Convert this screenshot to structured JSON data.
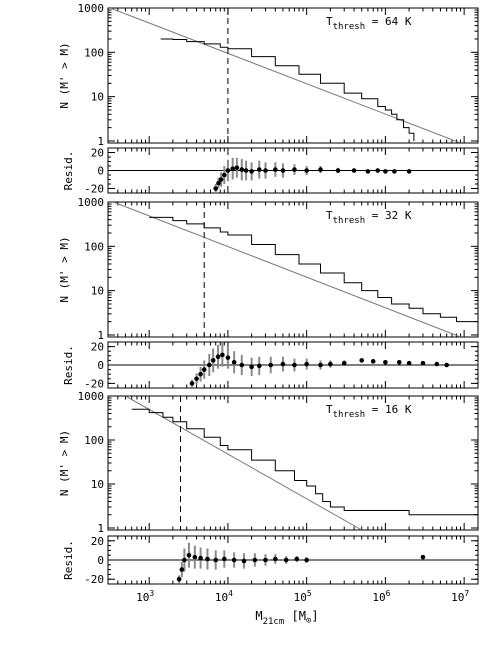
{
  "chart_data": [
    {
      "type": "line",
      "ylabel": "N (M' > M)",
      "annotation": {
        "prefix": "T",
        "sub": "thresh",
        "suffix": " = 64 K"
      },
      "xscale": "log",
      "yscale": "log",
      "xlim": [
        300,
        15000000
      ],
      "ylim": [
        0.9,
        1000
      ],
      "yticks": [
        {
          "v": 1,
          "label": "1"
        },
        {
          "v": 10,
          "label": "10"
        },
        {
          "v": 100,
          "label": "100"
        },
        {
          "v": 1000,
          "label": "1000"
        }
      ],
      "threshold_mass": 10000,
      "powerlaw_fit": {
        "x": [
          320,
          9000000
        ],
        "y": [
          1000,
          0.9
        ]
      },
      "cumulative": [
        [
          1400,
          200
        ],
        [
          2000,
          195
        ],
        [
          3000,
          175
        ],
        [
          5000,
          155
        ],
        [
          8000,
          130
        ],
        [
          10000,
          120
        ],
        [
          20000,
          80
        ],
        [
          40000,
          50
        ],
        [
          80000,
          32
        ],
        [
          150000,
          20
        ],
        [
          300000,
          12
        ],
        [
          500000,
          9
        ],
        [
          800000,
          6
        ],
        [
          1000000,
          5
        ],
        [
          1200000,
          4
        ],
        [
          1400000,
          3
        ],
        [
          1700000,
          2
        ],
        [
          2000000,
          1.5
        ],
        [
          2300000,
          1
        ]
      ]
    },
    {
      "type": "scatter",
      "ylabel": "Resid.",
      "xscale": "log",
      "xlim": [
        300,
        15000000
      ],
      "ylim": [
        -25,
        25
      ],
      "yticks": [
        {
          "v": -20,
          "label": "-20"
        },
        {
          "v": 0,
          "label": "0"
        },
        {
          "v": 20,
          "label": "20"
        }
      ],
      "points": [
        [
          7000,
          -20,
          5
        ],
        [
          7600,
          -14,
          6
        ],
        [
          8200,
          -10,
          8
        ],
        [
          9000,
          -5,
          10
        ],
        [
          10000,
          0,
          12
        ],
        [
          11500,
          2,
          12
        ],
        [
          13000,
          3,
          11
        ],
        [
          15000,
          1,
          12
        ],
        [
          17000,
          0,
          11
        ],
        [
          20000,
          -1,
          10
        ],
        [
          25000,
          1,
          10
        ],
        [
          30000,
          0,
          9
        ],
        [
          40000,
          1,
          8
        ],
        [
          50000,
          0,
          8
        ],
        [
          70000,
          1,
          6
        ],
        [
          100000,
          0,
          5
        ],
        [
          150000,
          1,
          4
        ],
        [
          250000,
          0,
          3
        ],
        [
          400000,
          0,
          2
        ],
        [
          600000,
          -1,
          2
        ],
        [
          800000,
          0,
          2
        ],
        [
          1000000,
          -1,
          2
        ],
        [
          1300000,
          -1,
          2
        ],
        [
          2000000,
          -1,
          2
        ]
      ]
    },
    {
      "type": "line",
      "ylabel": "N (M' > M)",
      "annotation": {
        "prefix": "T",
        "sub": "thresh",
        "suffix": " = 32 K"
      },
      "xscale": "log",
      "yscale": "log",
      "xlim": [
        300,
        15000000
      ],
      "ylim": [
        0.9,
        1000
      ],
      "yticks": [
        {
          "v": 1,
          "label": "1"
        },
        {
          "v": 10,
          "label": "10"
        },
        {
          "v": 100,
          "label": "100"
        },
        {
          "v": 1000,
          "label": "1000"
        }
      ],
      "threshold_mass": 5000,
      "powerlaw_fit": {
        "x": [
          350,
          9000000
        ],
        "y": [
          1000,
          0.9
        ]
      },
      "cumulative": [
        [
          1000,
          450
        ],
        [
          2000,
          380
        ],
        [
          3000,
          320
        ],
        [
          5000,
          260
        ],
        [
          8000,
          210
        ],
        [
          10000,
          180
        ],
        [
          20000,
          110
        ],
        [
          40000,
          65
        ],
        [
          80000,
          40
        ],
        [
          150000,
          25
        ],
        [
          300000,
          15
        ],
        [
          500000,
          10
        ],
        [
          800000,
          7
        ],
        [
          1200000,
          5
        ],
        [
          2000000,
          4
        ],
        [
          3000000,
          3
        ],
        [
          5000000,
          2.5
        ],
        [
          8000000,
          2
        ],
        [
          15000000,
          2
        ]
      ]
    },
    {
      "type": "scatter",
      "ylabel": "Resid.",
      "xscale": "log",
      "xlim": [
        300,
        15000000
      ],
      "ylim": [
        -25,
        25
      ],
      "yticks": [
        {
          "v": -20,
          "label": "-20"
        },
        {
          "v": 0,
          "label": "0"
        },
        {
          "v": 20,
          "label": "20"
        }
      ],
      "points": [
        [
          3500,
          -20,
          4
        ],
        [
          4000,
          -15,
          6
        ],
        [
          4500,
          -10,
          8
        ],
        [
          5000,
          -5,
          10
        ],
        [
          5800,
          0,
          12
        ],
        [
          6500,
          5,
          13
        ],
        [
          7500,
          9,
          13
        ],
        [
          8500,
          11,
          13
        ],
        [
          10000,
          8,
          12
        ],
        [
          12000,
          3,
          12
        ],
        [
          15000,
          0,
          11
        ],
        [
          20000,
          -2,
          10
        ],
        [
          25000,
          -1,
          10
        ],
        [
          35000,
          0,
          9
        ],
        [
          50000,
          1,
          8
        ],
        [
          70000,
          0,
          7
        ],
        [
          100000,
          1,
          6
        ],
        [
          150000,
          0,
          5
        ],
        [
          200000,
          1,
          4
        ],
        [
          300000,
          2,
          3
        ],
        [
          500000,
          5,
          2
        ],
        [
          700000,
          4,
          2
        ],
        [
          1000000,
          3,
          2
        ],
        [
          1500000,
          3,
          2
        ],
        [
          2000000,
          2,
          2
        ],
        [
          3000000,
          2,
          2
        ],
        [
          4500000,
          1,
          2
        ],
        [
          6000000,
          0,
          2
        ]
      ]
    },
    {
      "type": "line",
      "ylabel": "N (M' > M)",
      "annotation": {
        "prefix": "T",
        "sub": "thresh",
        "suffix": " = 16 K"
      },
      "xscale": "log",
      "yscale": "log",
      "xlim": [
        300,
        15000000
      ],
      "ylim": [
        0.9,
        1000
      ],
      "yticks": [
        {
          "v": 1,
          "label": "1"
        },
        {
          "v": 10,
          "label": "10"
        },
        {
          "v": 100,
          "label": "100"
        },
        {
          "v": 1000,
          "label": "1000"
        }
      ],
      "threshold_mass": 2500,
      "powerlaw_fit": {
        "x": [
          500,
          500000
        ],
        "y": [
          1000,
          0.9
        ]
      },
      "cumulative": [
        [
          600,
          500
        ],
        [
          1000,
          420
        ],
        [
          1500,
          330
        ],
        [
          2000,
          260
        ],
        [
          3000,
          180
        ],
        [
          5000,
          115
        ],
        [
          8000,
          75
        ],
        [
          10000,
          60
        ],
        [
          20000,
          35
        ],
        [
          40000,
          20
        ],
        [
          70000,
          12
        ],
        [
          100000,
          9
        ],
        [
          130000,
          6
        ],
        [
          160000,
          4
        ],
        [
          200000,
          3
        ],
        [
          300000,
          2.5
        ],
        [
          500000,
          2.5
        ],
        [
          1000000,
          2.5
        ],
        [
          1500000,
          2.5
        ],
        [
          2000000,
          2
        ],
        [
          15000000,
          2
        ]
      ]
    },
    {
      "type": "scatter",
      "ylabel": "Resid.",
      "xscale": "log",
      "xlim": [
        300,
        15000000
      ],
      "ylim": [
        -25,
        25
      ],
      "yticks": [
        {
          "v": -20,
          "label": "-20"
        },
        {
          "v": 0,
          "label": "0"
        },
        {
          "v": 20,
          "label": "20"
        }
      ],
      "xlabel": {
        "prefix": "M",
        "sub": "21cm",
        "suffix": " [M",
        "sub2": "⊙",
        "end": "]"
      },
      "xticks": [
        {
          "v": 1000,
          "label": "10",
          "exp": "3"
        },
        {
          "v": 10000,
          "label": "10",
          "exp": "4"
        },
        {
          "v": 100000,
          "label": "10",
          "exp": "5"
        },
        {
          "v": 1000000,
          "label": "10",
          "exp": "6"
        },
        {
          "v": 10000000,
          "label": "10",
          "exp": "7"
        }
      ],
      "points": [
        [
          2400,
          -20,
          4
        ],
        [
          2600,
          -10,
          8
        ],
        [
          2800,
          0,
          12
        ],
        [
          3200,
          5,
          13
        ],
        [
          3800,
          3,
          12
        ],
        [
          4500,
          2,
          11
        ],
        [
          5500,
          1,
          11
        ],
        [
          7000,
          0,
          10
        ],
        [
          9000,
          1,
          9
        ],
        [
          12000,
          0,
          8
        ],
        [
          16000,
          -1,
          8
        ],
        [
          22000,
          0,
          7
        ],
        [
          30000,
          0,
          6
        ],
        [
          40000,
          1,
          5
        ],
        [
          55000,
          0,
          4
        ],
        [
          75000,
          1,
          3
        ],
        [
          100000,
          0,
          3
        ],
        [
          3000000,
          3,
          2
        ]
      ]
    }
  ]
}
